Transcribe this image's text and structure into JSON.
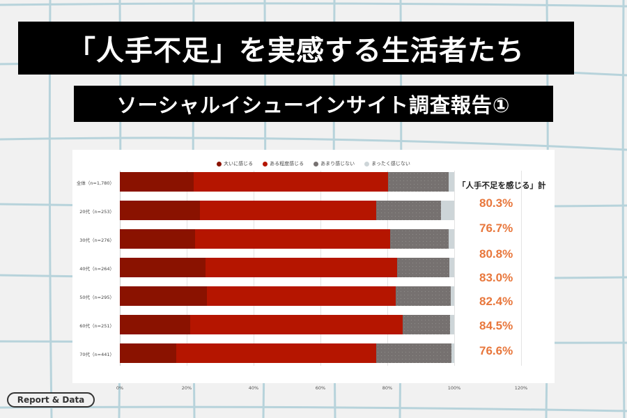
{
  "header": {
    "title": "「人手不足」を実感する生活者たち",
    "subtitle": "ソーシャルイシューインサイト調査報告①"
  },
  "badge": {
    "label": "Report & Data"
  },
  "colors": {
    "background": "#f1f1f1",
    "grid_lines": "#b7d3db",
    "title_bg": "#000000",
    "strongly_feel": "#8a1200",
    "somewhat_feel": "#b51500",
    "not_much": "#767170",
    "not_at_all": "#cdd5d8",
    "total_value": "#e8773c"
  },
  "chart_data": {
    "type": "bar",
    "orientation": "horizontal",
    "stacked": true,
    "title": "",
    "categories": [
      "全体（n=1,780）",
      "20代（n=253）",
      "30代（n=276）",
      "40代（n=264）",
      "50代（n=295）",
      "60代（n=251）",
      "70代（n=441）"
    ],
    "series": [
      {
        "name": "大いに感じる",
        "values": [
          22.1,
          24.0,
          22.4,
          25.7,
          26.1,
          21.0,
          16.9
        ]
      },
      {
        "name": "ある程度感じる",
        "values": [
          58.2,
          52.7,
          58.4,
          57.3,
          56.3,
          63.5,
          59.7
        ]
      },
      {
        "name": "あまり感じない",
        "values": [
          18.0,
          19.3,
          17.5,
          15.5,
          16.6,
          14.3,
          22.5
        ]
      },
      {
        "name": "まったく感じない",
        "values": [
          1.7,
          4.0,
          1.7,
          1.5,
          1.0,
          1.2,
          0.9
        ]
      }
    ],
    "totals_header": "「人手不足を感じる」計",
    "totals": [
      "80.3%",
      "76.7%",
      "80.8%",
      "83.0%",
      "82.4%",
      "84.5%",
      "76.6%"
    ],
    "x_ticks": [
      "0%",
      "20%",
      "40%",
      "60%",
      "80%",
      "100%",
      "120%"
    ],
    "xlim": [
      0,
      120
    ],
    "xlabel": "",
    "ylabel": "",
    "grid": true,
    "legend_position": "top"
  }
}
